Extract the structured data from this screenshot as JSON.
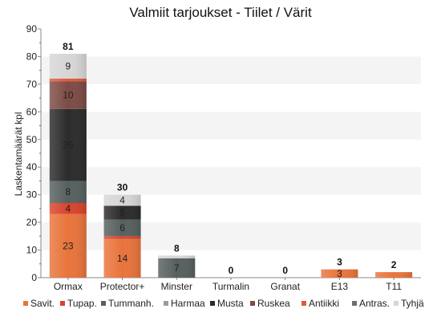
{
  "chart_data": {
    "type": "bar",
    "stacked": true,
    "title": "Valmiit tarjoukset - Tiilet / Värit",
    "xlabel": "",
    "ylabel": "Laskentamäärät kpl",
    "ylim": [
      0,
      90
    ],
    "yticks": [
      0,
      10,
      20,
      30,
      40,
      50,
      60,
      70,
      80,
      90
    ],
    "grid": "horizontal bands",
    "legend_position": "bottom",
    "categories": [
      "Ormax",
      "Protector+",
      "Minster",
      "Turmalin",
      "Granat",
      "E13",
      "T11"
    ],
    "totals": [
      81,
      30,
      8,
      0,
      0,
      3,
      2
    ],
    "series": [
      {
        "name": "Savit.",
        "color": "#e8743b",
        "values": [
          23,
          14,
          0,
          0,
          0,
          3,
          2
        ],
        "labels": [
          "23",
          "14",
          "",
          "",
          "",
          "3",
          ""
        ]
      },
      {
        "name": "Tupap.",
        "color": "#d9432c",
        "values": [
          4,
          1,
          0,
          0,
          0,
          0,
          0
        ],
        "labels": [
          "4",
          "",
          "",
          "",
          "",
          "",
          ""
        ]
      },
      {
        "name": "Tummanh.",
        "color": "#56605f",
        "values": [
          8,
          6,
          7,
          0,
          0,
          0,
          0
        ],
        "labels": [
          "8",
          "6",
          "7",
          "",
          "",
          "",
          ""
        ]
      },
      {
        "name": "Harmaa",
        "color": "#9b9b9b",
        "values": [
          0,
          0,
          0,
          0,
          0,
          0,
          0
        ],
        "labels": [
          "",
          "",
          "",
          "",
          "",
          "",
          ""
        ]
      },
      {
        "name": "Musta",
        "color": "#2b2b2b",
        "values": [
          26,
          5,
          0,
          0,
          0,
          0,
          0
        ],
        "labels": [
          "26",
          "5",
          "",
          "",
          "",
          "",
          ""
        ]
      },
      {
        "name": "Ruskea",
        "color": "#7d4b45",
        "values": [
          10,
          0,
          0,
          0,
          0,
          0,
          0
        ],
        "labels": [
          "10",
          "",
          "",
          "",
          "",
          "",
          ""
        ]
      },
      {
        "name": "Antiikki",
        "color": "#e05a3a",
        "values": [
          1,
          0,
          0,
          0,
          0,
          0,
          0
        ],
        "labels": [
          "",
          "",
          "",
          "",
          "",
          "",
          ""
        ]
      },
      {
        "name": "Antras.",
        "color": "#6f6f6f",
        "values": [
          0,
          0,
          0,
          0,
          0,
          0,
          0
        ],
        "labels": [
          "",
          "",
          "",
          "",
          "",
          "",
          ""
        ]
      },
      {
        "name": "Tyhjä",
        "color": "#d6d6d6",
        "values": [
          9,
          4,
          1,
          0,
          0,
          0,
          0
        ],
        "labels": [
          "9",
          "4",
          "",
          "",
          "",
          "",
          ""
        ]
      }
    ]
  }
}
